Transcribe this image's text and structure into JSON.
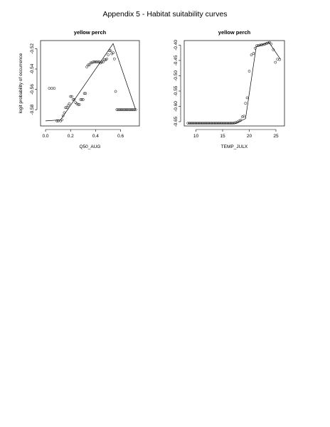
{
  "page": {
    "title": "Appendix 5 - Habitat suitability curves"
  },
  "chart_data": [
    {
      "type": "scatter",
      "title": "yellow perch",
      "xlabel": "Q50_AUG",
      "ylabel": "logit probability of occurrence",
      "xlim": [
        -0.04,
        0.75
      ],
      "ylim": [
        -0.596,
        -0.512
      ],
      "xticks": [
        0.0,
        0.2,
        0.4,
        0.6
      ],
      "xtick_labels": [
        "0.0",
        "0.2",
        "0.4",
        "0.6"
      ],
      "yticks": [
        -0.52,
        -0.54,
        -0.56,
        -0.58
      ],
      "ytick_labels": [
        "-0.52",
        "-0.54",
        "-0.56",
        "-0.58"
      ],
      "grid": false,
      "series": [
        {
          "kind": "points",
          "x": [
            0.03,
            0.05,
            0.07,
            0.09,
            0.1,
            0.12,
            0.13,
            0.14,
            0.15,
            0.16,
            0.17,
            0.18,
            0.19,
            0.2,
            0.21,
            0.22,
            0.23,
            0.24,
            0.25,
            0.26,
            0.27,
            0.28,
            0.29,
            0.3,
            0.31,
            0.32,
            0.33,
            0.34,
            0.35,
            0.36,
            0.37,
            0.38,
            0.39,
            0.4,
            0.41,
            0.42,
            0.43,
            0.44,
            0.45,
            0.46,
            0.47,
            0.48,
            0.49,
            0.5,
            0.51,
            0.52,
            0.53,
            0.54,
            0.55,
            0.56,
            0.57,
            0.58,
            0.59,
            0.6,
            0.61,
            0.62,
            0.63,
            0.64,
            0.65,
            0.66,
            0.67,
            0.68,
            0.69,
            0.7,
            0.71,
            0.72
          ],
          "y": [
            -0.559,
            -0.559,
            -0.559,
            -0.591,
            -0.591,
            -0.591,
            -0.59,
            -0.586,
            -0.583,
            -0.578,
            -0.578,
            -0.576,
            -0.574,
            -0.567,
            -0.567,
            -0.57,
            -0.57,
            -0.573,
            -0.574,
            -0.575,
            -0.575,
            -0.57,
            -0.57,
            -0.57,
            -0.564,
            -0.564,
            -0.538,
            -0.536,
            -0.536,
            -0.534,
            -0.534,
            -0.533,
            -0.533,
            -0.533,
            -0.533,
            -0.533,
            -0.533,
            -0.534,
            -0.533,
            -0.533,
            -0.531,
            -0.531,
            -0.53,
            -0.526,
            -0.522,
            -0.522,
            -0.525,
            -0.524,
            -0.53,
            -0.562,
            -0.58,
            -0.58,
            -0.58,
            -0.58,
            -0.58,
            -0.58,
            -0.58,
            -0.58,
            -0.58,
            -0.58,
            -0.58,
            -0.58,
            -0.58,
            -0.58,
            -0.58,
            -0.58
          ]
        },
        {
          "kind": "line",
          "x": [
            0.0,
            0.12,
            0.54,
            0.72
          ],
          "y": [
            -0.591,
            -0.59,
            -0.515,
            -0.58
          ]
        }
      ]
    },
    {
      "type": "scatter",
      "title": "yellow perch",
      "xlabel": "TEMP_JULX",
      "ylabel": "",
      "xlim": [
        7.8,
        26.6
      ],
      "ylim": [
        -0.664,
        -0.385
      ],
      "xticks": [
        10,
        15,
        20,
        25
      ],
      "xtick_labels": [
        "10",
        "15",
        "20",
        "25"
      ],
      "yticks": [
        -0.4,
        -0.45,
        -0.5,
        -0.55,
        -0.6,
        -0.65
      ],
      "ytick_labels": [
        "-0.40",
        "-0.45",
        "-0.50",
        "-0.55",
        "-0.60",
        "-0.65"
      ],
      "grid": false,
      "series": [
        {
          "kind": "points",
          "x": [
            8.5,
            8.8,
            9.1,
            9.4,
            9.7,
            10.0,
            10.3,
            10.6,
            10.9,
            11.2,
            11.5,
            11.8,
            12.1,
            12.4,
            12.7,
            13.0,
            13.3,
            13.6,
            13.9,
            14.2,
            14.5,
            14.8,
            15.1,
            15.4,
            15.7,
            16.0,
            16.3,
            16.6,
            16.9,
            17.2,
            17.5,
            17.8,
            18.1,
            18.4,
            18.7,
            19.0,
            19.3,
            19.6,
            20.0,
            20.4,
            20.8,
            21.1,
            21.4,
            21.7,
            22.0,
            22.3,
            22.6,
            22.9,
            23.2,
            23.5,
            23.8,
            24.1,
            24.5,
            24.9,
            25.3,
            25.7
          ],
          "y": [
            -0.655,
            -0.655,
            -0.655,
            -0.655,
            -0.655,
            -0.655,
            -0.655,
            -0.655,
            -0.655,
            -0.655,
            -0.655,
            -0.655,
            -0.655,
            -0.655,
            -0.655,
            -0.655,
            -0.655,
            -0.655,
            -0.655,
            -0.655,
            -0.655,
            -0.655,
            -0.655,
            -0.655,
            -0.655,
            -0.655,
            -0.655,
            -0.655,
            -0.655,
            -0.654,
            -0.653,
            -0.651,
            -0.648,
            -0.645,
            -0.634,
            -0.632,
            -0.59,
            -0.572,
            -0.485,
            -0.432,
            -0.427,
            -0.41,
            -0.402,
            -0.401,
            -0.4,
            -0.399,
            -0.398,
            -0.397,
            -0.395,
            -0.393,
            -0.391,
            -0.396,
            -0.415,
            -0.456,
            -0.446,
            -0.447
          ]
        },
        {
          "kind": "line",
          "x": [
            8.5,
            17.5,
            19.3,
            21.3,
            23.7,
            25.8
          ],
          "y": [
            -0.655,
            -0.655,
            -0.64,
            -0.405,
            -0.391,
            -0.445
          ]
        }
      ]
    }
  ]
}
